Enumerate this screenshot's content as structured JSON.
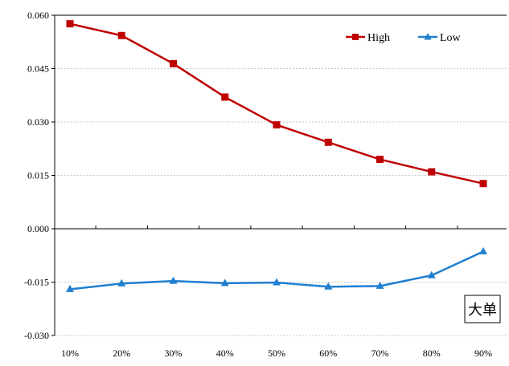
{
  "chart_data": {
    "type": "line",
    "categories": [
      "10%",
      "20%",
      "30%",
      "40%",
      "50%",
      "60%",
      "70%",
      "80%",
      "90%"
    ],
    "series": [
      {
        "name": "High",
        "color": "#c00000",
        "marker": "square",
        "values": [
          0.0576,
          0.0543,
          0.0464,
          0.037,
          0.0292,
          0.0243,
          0.0195,
          0.016,
          0.0127
        ]
      },
      {
        "name": "Low",
        "color": "#1f7fd0",
        "marker": "triangle",
        "values": [
          -0.017,
          -0.0154,
          -0.0147,
          -0.0153,
          -0.0151,
          -0.0163,
          -0.0161,
          -0.0131,
          -0.0064
        ]
      }
    ],
    "ylim": [
      -0.03,
      0.06
    ],
    "yticks": [
      "0.060",
      "0.045",
      "0.030",
      "0.015",
      "0.000",
      "-0.015",
      "-0.030"
    ],
    "grid": "horizontal dotted",
    "legend_position": "top-right",
    "annotation": "大单"
  }
}
